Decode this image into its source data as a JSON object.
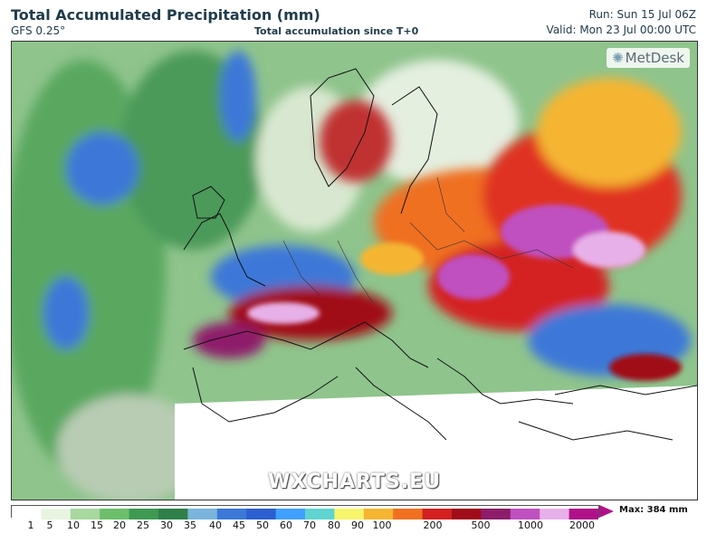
{
  "header": {
    "title": "Total Accumulated Precipitation (mm)",
    "model": "GFS 0.25°",
    "subtitle": "Total accumulation since T+0",
    "run": "Run: Sun 15 Jul 06Z",
    "valid": "Valid: Mon 23 Jul 00:00 UTC"
  },
  "logo": {
    "text": "MetDesk",
    "icon": "metdesk-logo-icon"
  },
  "watermark": "WXCHARTS.EU",
  "legend": {
    "max_label": "Max: 384 mm",
    "ticks": [
      "1",
      "5",
      "10",
      "15",
      "20",
      "25",
      "30",
      "35",
      "40",
      "45",
      "50",
      "60",
      "70",
      "80",
      "90",
      "100",
      "200",
      "500",
      "1000",
      "2000"
    ],
    "colors": [
      "#ffffff",
      "#e8f4e0",
      "#a8d8a0",
      "#6cbf6a",
      "#3e9a52",
      "#2f7f4a",
      "#7ab4dc",
      "#3c78d8",
      "#2c5fd0",
      "#3fa0ff",
      "#5fd4d0",
      "#f7f56a",
      "#f5b530",
      "#f07020",
      "#d42020",
      "#a00c18",
      "#8e1c6a",
      "#c050c0",
      "#e8b0e8",
      "#b0108a"
    ],
    "arrow_color": "#b0108a"
  }
}
